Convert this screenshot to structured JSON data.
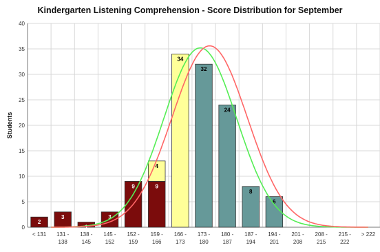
{
  "chart_data": {
    "type": "bar",
    "title": "Kindergarten Listening Comprehension - Score Distribution for September",
    "ylabel": "Students",
    "xlabel": "",
    "ylim": [
      0,
      40
    ],
    "yticks": [
      0,
      5,
      10,
      15,
      20,
      25,
      30,
      35,
      40
    ],
    "grid": true,
    "stacked": true,
    "categories": [
      [
        "< 131"
      ],
      [
        "131 -",
        "138"
      ],
      [
        "138 -",
        "145"
      ],
      [
        "145 -",
        "152"
      ],
      [
        "152 -",
        "159"
      ],
      [
        "159 -",
        "166"
      ],
      [
        "166 -",
        "173"
      ],
      [
        "173 -",
        "180"
      ],
      [
        "180 -",
        "187"
      ],
      [
        "187 -",
        "194"
      ],
      [
        "194 -",
        "201"
      ],
      [
        "201 -",
        "208"
      ],
      [
        "208 -",
        "215"
      ],
      [
        "215 -",
        "222"
      ],
      [
        "> 222"
      ]
    ],
    "series": [
      {
        "color": "#7b0c0c",
        "label_color": "#ffffff",
        "values": [
          2,
          3,
          1,
          3,
          9,
          9,
          0,
          0,
          0,
          0,
          0,
          0,
          0,
          0,
          0
        ]
      },
      {
        "color": "#ffff99",
        "label_color": "#000000",
        "values": [
          0,
          0,
          0,
          0,
          0,
          4,
          34,
          0,
          0,
          0,
          0,
          0,
          0,
          0,
          0
        ]
      },
      {
        "color": "#669999",
        "label_color": "#000000",
        "values": [
          0,
          0,
          0,
          0,
          0,
          0,
          0,
          32,
          24,
          8,
          6,
          0,
          0,
          0,
          0
        ]
      }
    ],
    "curves": [
      {
        "color": "#55ee55",
        "type": "normal",
        "peak": 35.2,
        "center_index": 6.85,
        "sigma": 1.55
      },
      {
        "color": "#ff6666",
        "type": "normal",
        "peak": 35.6,
        "center_index": 7.25,
        "sigma": 1.6
      }
    ]
  }
}
